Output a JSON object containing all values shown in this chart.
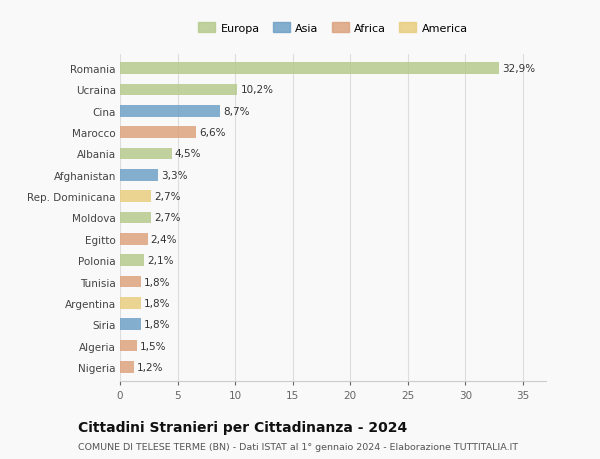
{
  "countries": [
    "Romania",
    "Ucraina",
    "Cina",
    "Marocco",
    "Albania",
    "Afghanistan",
    "Rep. Dominicana",
    "Moldova",
    "Egitto",
    "Polonia",
    "Tunisia",
    "Argentina",
    "Siria",
    "Algeria",
    "Nigeria"
  ],
  "values": [
    32.9,
    10.2,
    8.7,
    6.6,
    4.5,
    3.3,
    2.7,
    2.7,
    2.4,
    2.1,
    1.8,
    1.8,
    1.8,
    1.5,
    1.2
  ],
  "labels": [
    "32,9%",
    "10,2%",
    "8,7%",
    "6,6%",
    "4,5%",
    "3,3%",
    "2,7%",
    "2,7%",
    "2,4%",
    "2,1%",
    "1,8%",
    "1,8%",
    "1,8%",
    "1,5%",
    "1,2%"
  ],
  "colors": [
    "#b5c98a",
    "#b5c98a",
    "#6b9ec4",
    "#dba07a",
    "#b5c98a",
    "#6b9ec4",
    "#e8cc7a",
    "#b5c98a",
    "#dba07a",
    "#b5c98a",
    "#dba07a",
    "#e8cc7a",
    "#6b9ec4",
    "#dba07a",
    "#dba07a"
  ],
  "legend_labels": [
    "Europa",
    "Asia",
    "Africa",
    "America"
  ],
  "legend_colors": [
    "#b5c98a",
    "#6b9ec4",
    "#dba07a",
    "#e8cc7a"
  ],
  "title_main": "Cittadini Stranieri per Cittadinanza - 2024",
  "title_sub": "COMUNE DI TELESE TERME (BN) - Dati ISTAT al 1° gennaio 2024 - Elaborazione TUTTITALIA.IT",
  "xlim": [
    0,
    37
  ],
  "xticks": [
    0,
    5,
    10,
    15,
    20,
    25,
    30,
    35
  ],
  "background_color": "#f9f9f9",
  "grid_color": "#dddddd",
  "bar_height": 0.55,
  "alpha": 0.82,
  "label_fontsize": 7.5,
  "tick_fontsize": 7.5,
  "legend_fontsize": 8.0,
  "title_fontsize": 10,
  "sub_fontsize": 6.8
}
